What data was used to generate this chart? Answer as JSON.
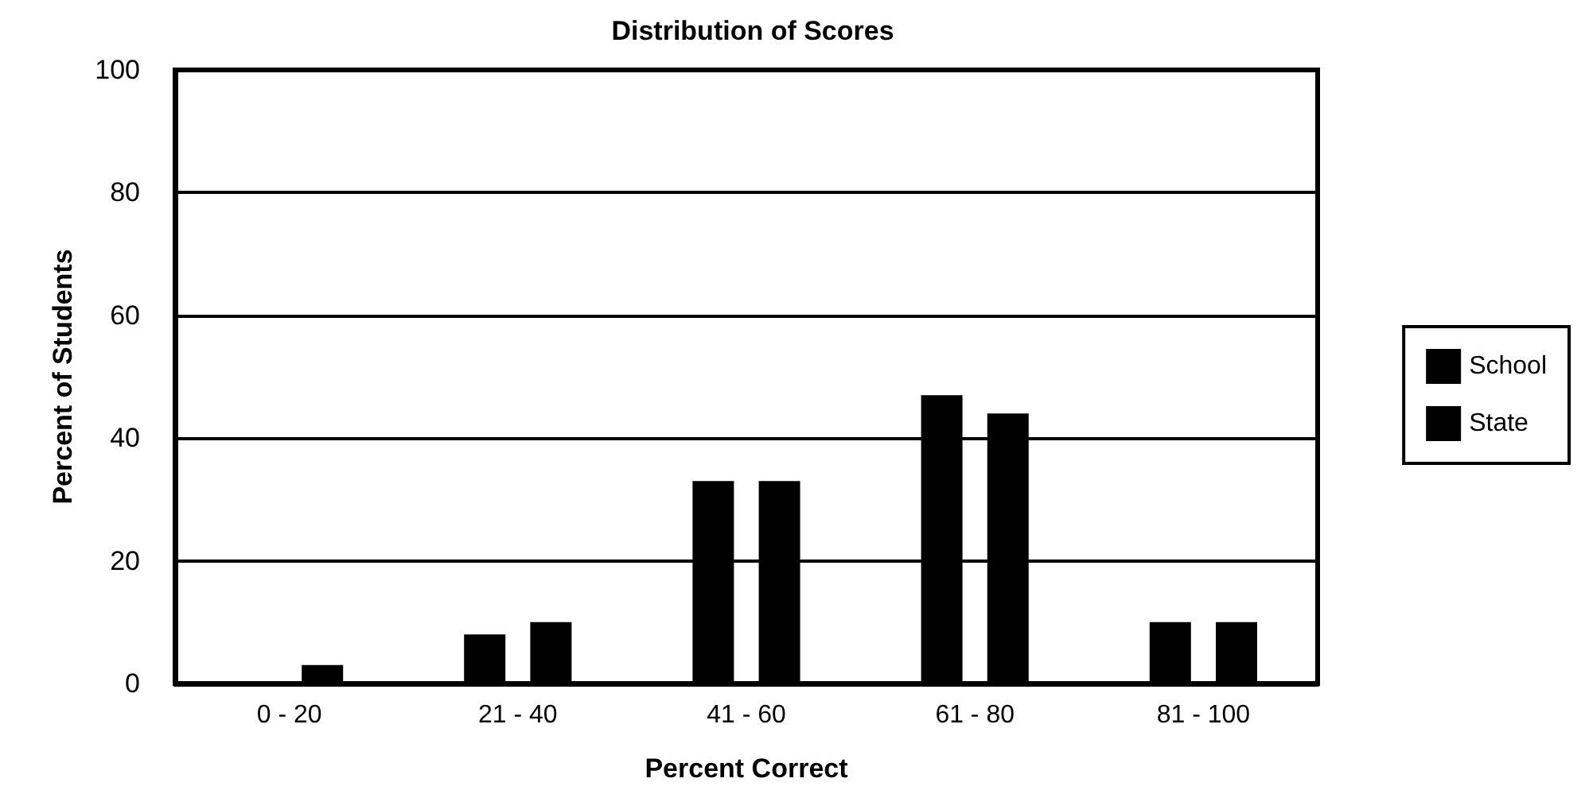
{
  "chart_data": {
    "type": "bar",
    "title": "Distribution of Scores",
    "xlabel": "Percent Correct",
    "ylabel": "Percent of Students",
    "categories": [
      "0 - 20",
      "21 - 40",
      "41 - 60",
      "61 - 80",
      "81 - 100"
    ],
    "series": [
      {
        "name": "School",
        "color": "#000000",
        "values": [
          0,
          8,
          33,
          47,
          10
        ]
      },
      {
        "name": "State",
        "color": "#000000",
        "values": [
          3,
          10,
          33,
          44,
          10
        ]
      }
    ],
    "ylim": [
      0,
      100
    ],
    "yticks": [
      0,
      20,
      40,
      60,
      80,
      100
    ],
    "grid": "y",
    "legend": "right"
  }
}
